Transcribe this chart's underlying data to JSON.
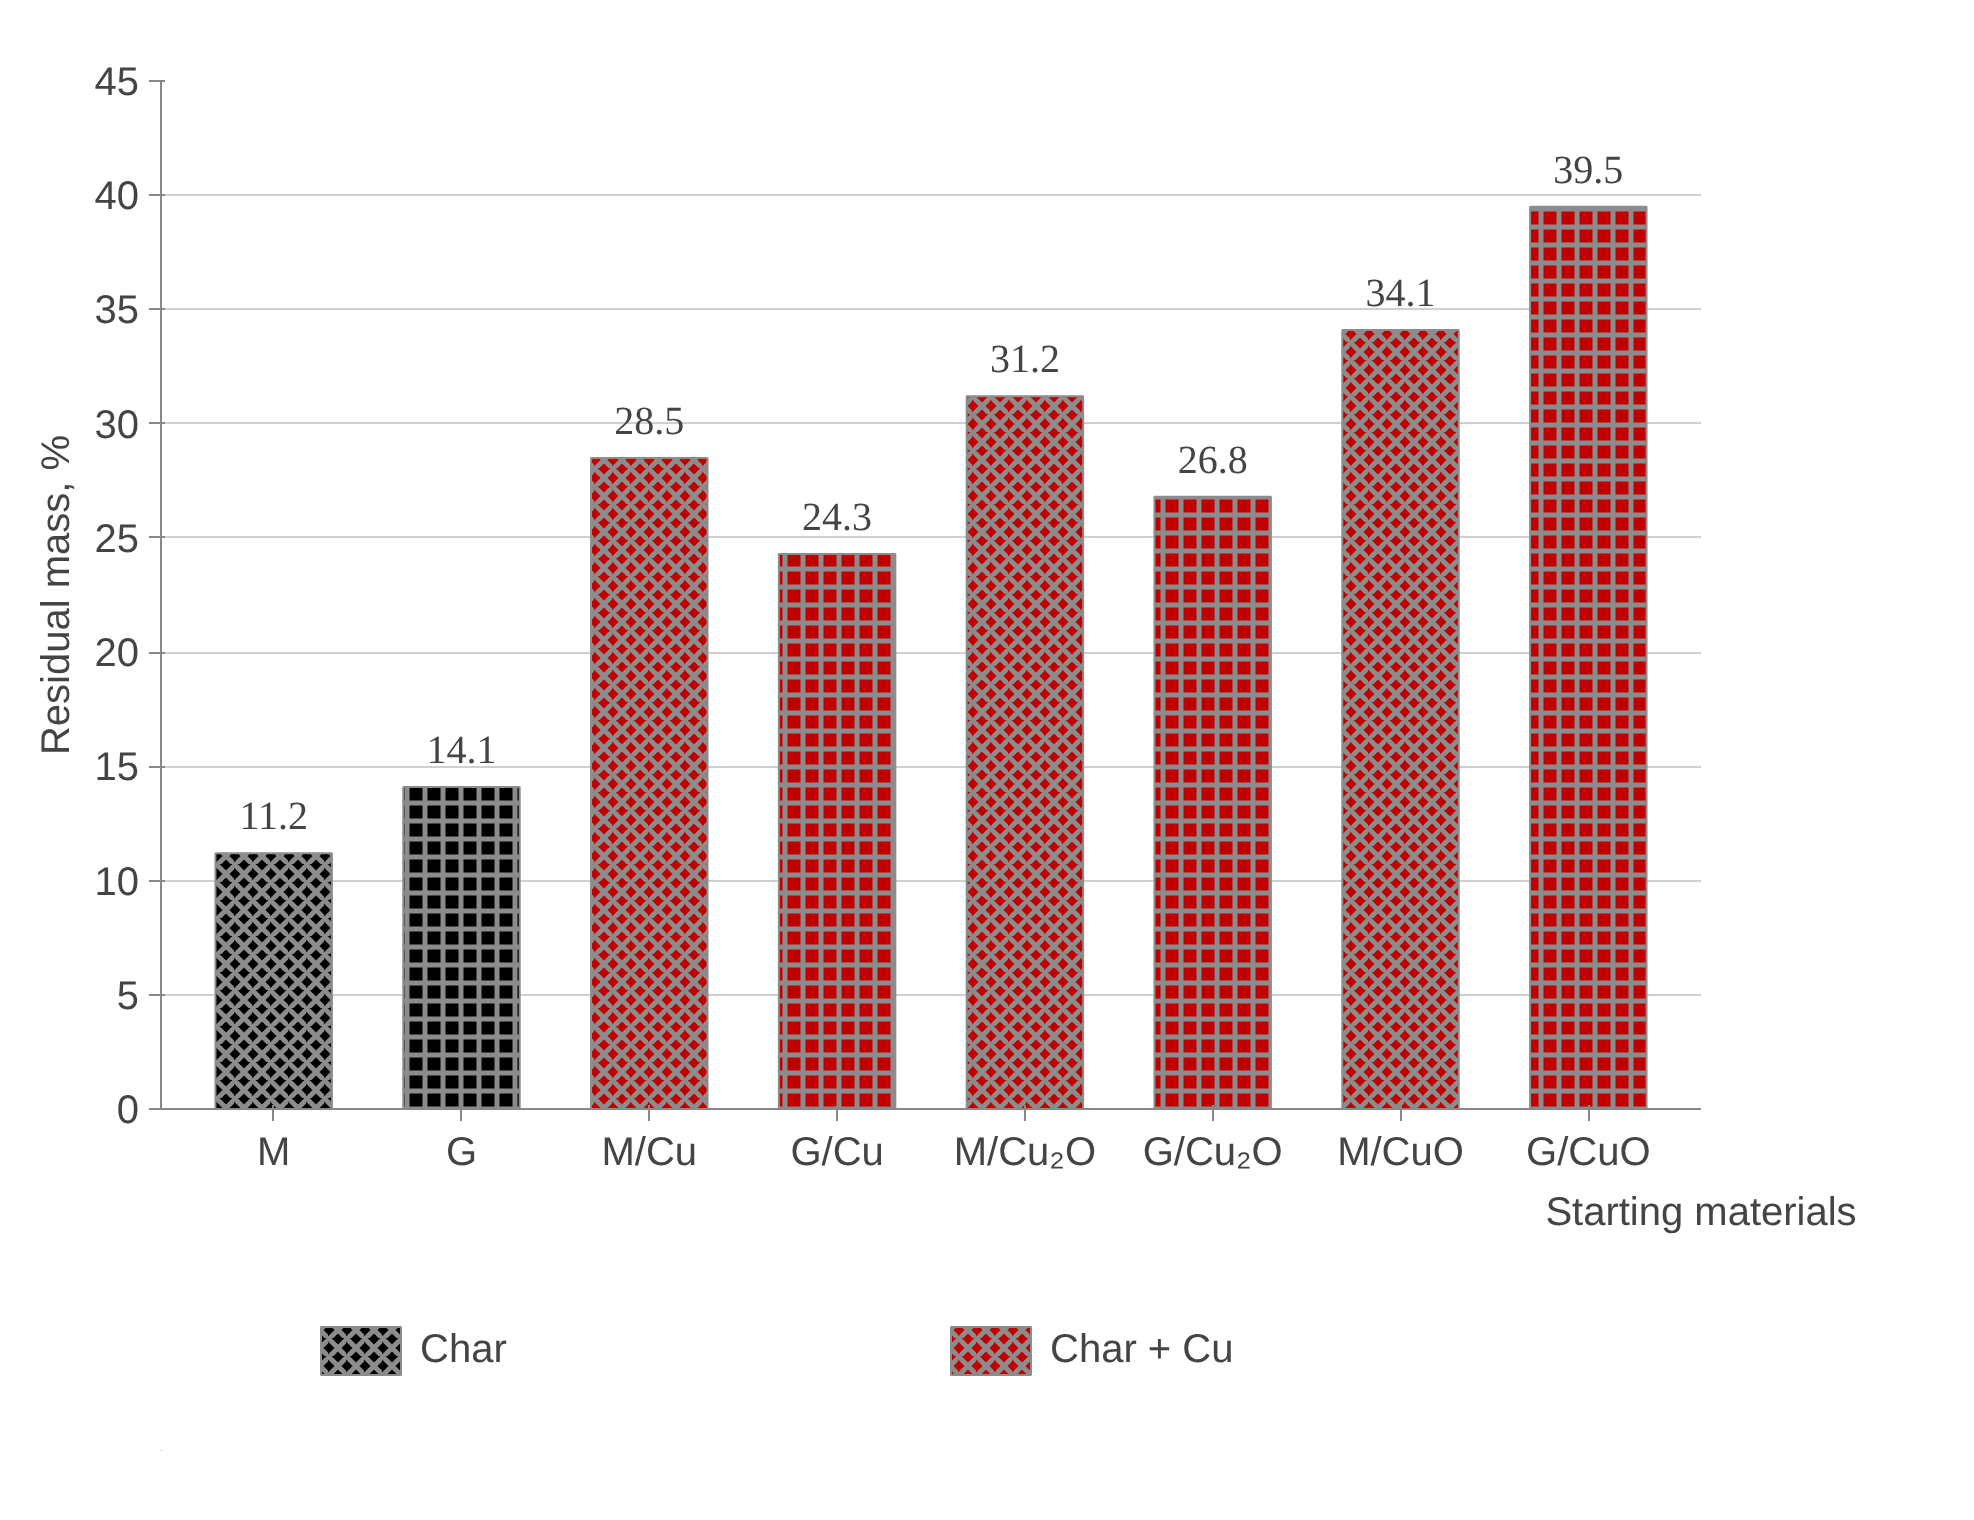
{
  "chart_data": {
    "type": "bar",
    "ylabel": "Residual mass, %",
    "xlabel": "Starting materials",
    "categories": [
      "M",
      "G",
      "M/Cu",
      "G/Cu",
      "M/Cu₂O",
      "G/Cu₂O",
      "M/CuO",
      "G/CuO"
    ],
    "series": [
      {
        "name": "Char",
        "color": "#000000",
        "values": [
          11.2,
          14.1,
          null,
          null,
          null,
          null,
          null,
          null
        ]
      },
      {
        "name": "Char + Cu",
        "color": "#c00000",
        "values": [
          null,
          null,
          28.5,
          24.3,
          31.2,
          26.8,
          34.1,
          39.5
        ]
      }
    ],
    "ylim": [
      0,
      45
    ],
    "yticks": [
      0,
      5,
      10,
      15,
      20,
      25,
      30,
      35,
      40,
      45
    ],
    "grid": "y",
    "data_labels": true,
    "legend": "bottom"
  }
}
